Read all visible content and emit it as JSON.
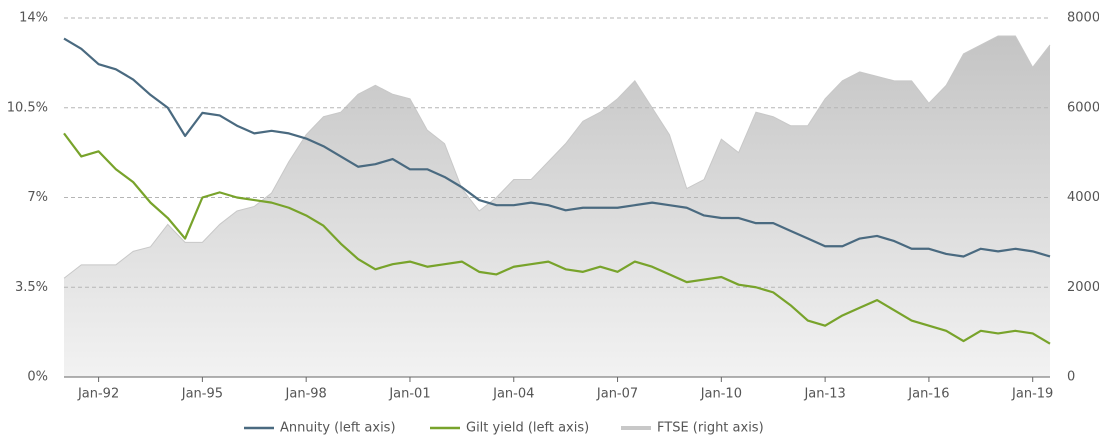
{
  "chart_data": {
    "type": "line",
    "x": [
      "1991-01",
      "1991-07",
      "1992-01",
      "1992-07",
      "1993-01",
      "1993-07",
      "1994-01",
      "1994-07",
      "1995-01",
      "1995-07",
      "1996-01",
      "1996-07",
      "1997-01",
      "1997-07",
      "1998-01",
      "1998-07",
      "1999-01",
      "1999-07",
      "2000-01",
      "2000-07",
      "2001-01",
      "2001-07",
      "2002-01",
      "2002-07",
      "2003-01",
      "2003-07",
      "2004-01",
      "2004-07",
      "2005-01",
      "2005-07",
      "2006-01",
      "2006-07",
      "2007-01",
      "2007-07",
      "2008-01",
      "2008-07",
      "2009-01",
      "2009-07",
      "2010-01",
      "2010-07",
      "2011-01",
      "2011-07",
      "2012-01",
      "2012-07",
      "2013-01",
      "2013-07",
      "2014-01",
      "2014-07",
      "2015-01",
      "2015-07",
      "2016-01",
      "2016-07",
      "2017-01",
      "2017-07",
      "2018-01",
      "2018-07",
      "2019-01",
      "2019-07"
    ],
    "series": [
      {
        "name": "Annuity (left axis)",
        "color": "#4a6a80",
        "values": [
          13.2,
          12.8,
          12.2,
          12.0,
          11.6,
          11.0,
          10.5,
          9.4,
          10.3,
          10.2,
          9.8,
          9.5,
          9.6,
          9.5,
          9.3,
          9.0,
          8.6,
          8.2,
          8.3,
          8.5,
          8.1,
          8.1,
          7.8,
          7.4,
          6.9,
          6.7,
          6.7,
          6.8,
          6.7,
          6.5,
          6.6,
          6.6,
          6.6,
          6.7,
          6.8,
          6.7,
          6.6,
          6.3,
          6.2,
          6.2,
          6.0,
          6.0,
          5.7,
          5.4,
          5.1,
          5.1,
          5.4,
          5.5,
          5.3,
          5.0,
          5.0,
          4.8,
          4.7,
          5.0,
          4.9,
          5.0,
          4.9,
          4.7
        ]
      },
      {
        "name": "Gilt yield (left axis)",
        "color": "#78a32b",
        "values": [
          9.5,
          8.6,
          8.8,
          8.1,
          7.6,
          6.8,
          6.2,
          5.4,
          7.0,
          7.2,
          7.0,
          6.9,
          6.8,
          6.6,
          6.3,
          5.9,
          5.2,
          4.6,
          4.2,
          4.4,
          4.5,
          4.3,
          4.4,
          4.5,
          4.1,
          4.0,
          4.3,
          4.4,
          4.5,
          4.2,
          4.1,
          4.3,
          4.1,
          4.5,
          4.3,
          4.0,
          3.7,
          3.8,
          3.9,
          3.6,
          3.5,
          3.3,
          2.8,
          2.2,
          2.0,
          2.4,
          2.7,
          3.0,
          2.6,
          2.2,
          2.0,
          1.8,
          1.4,
          1.8,
          1.7,
          1.8,
          1.7,
          1.3
        ]
      },
      {
        "name": "FTSE (right axis)",
        "color": "#c8c8c8",
        "axis": "y2",
        "values": [
          2200,
          2500,
          2500,
          2500,
          2800,
          2900,
          3400,
          3000,
          3000,
          3400,
          3700,
          3800,
          4100,
          4800,
          5400,
          5800,
          5900,
          6300,
          6500,
          6300,
          6200,
          5500,
          5200,
          4200,
          3700,
          4000,
          4400,
          4400,
          4800,
          5200,
          5700,
          5900,
          6200,
          6600,
          6000,
          5400,
          4200,
          4400,
          5300,
          5000,
          5900,
          5800,
          5600,
          5600,
          6200,
          6600,
          6800,
          6700,
          6600,
          6600,
          6100,
          6500,
          7200,
          7400,
          7600,
          7600,
          6900,
          7400
        ]
      }
    ],
    "xlim": [
      "1991-01",
      "2019-07"
    ],
    "xticks": [
      {
        "value": "1992-01",
        "label": "Jan-92"
      },
      {
        "value": "1995-01",
        "label": "Jan-95"
      },
      {
        "value": "1998-01",
        "label": "Jan-98"
      },
      {
        "value": "2001-01",
        "label": "Jan-01"
      },
      {
        "value": "2004-01",
        "label": "Jan-04"
      },
      {
        "value": "2007-01",
        "label": "Jan-07"
      },
      {
        "value": "2010-01",
        "label": "Jan-10"
      },
      {
        "value": "2013-01",
        "label": "Jan-13"
      },
      {
        "value": "2016-01",
        "label": "Jan-16"
      },
      {
        "value": "2019-01",
        "label": "Jan-19"
      }
    ],
    "ylim": [
      0,
      14
    ],
    "yticks": [
      {
        "value": 0,
        "label": "0%"
      },
      {
        "value": 3.5,
        "label": "3.5%"
      },
      {
        "value": 7,
        "label": "7%"
      },
      {
        "value": 10.5,
        "label": "10.5%"
      },
      {
        "value": 14,
        "label": "14%"
      }
    ],
    "y2lim": [
      0,
      8000
    ],
    "y2ticks": [
      0,
      2000,
      4000,
      6000,
      8000
    ],
    "grid": true
  }
}
